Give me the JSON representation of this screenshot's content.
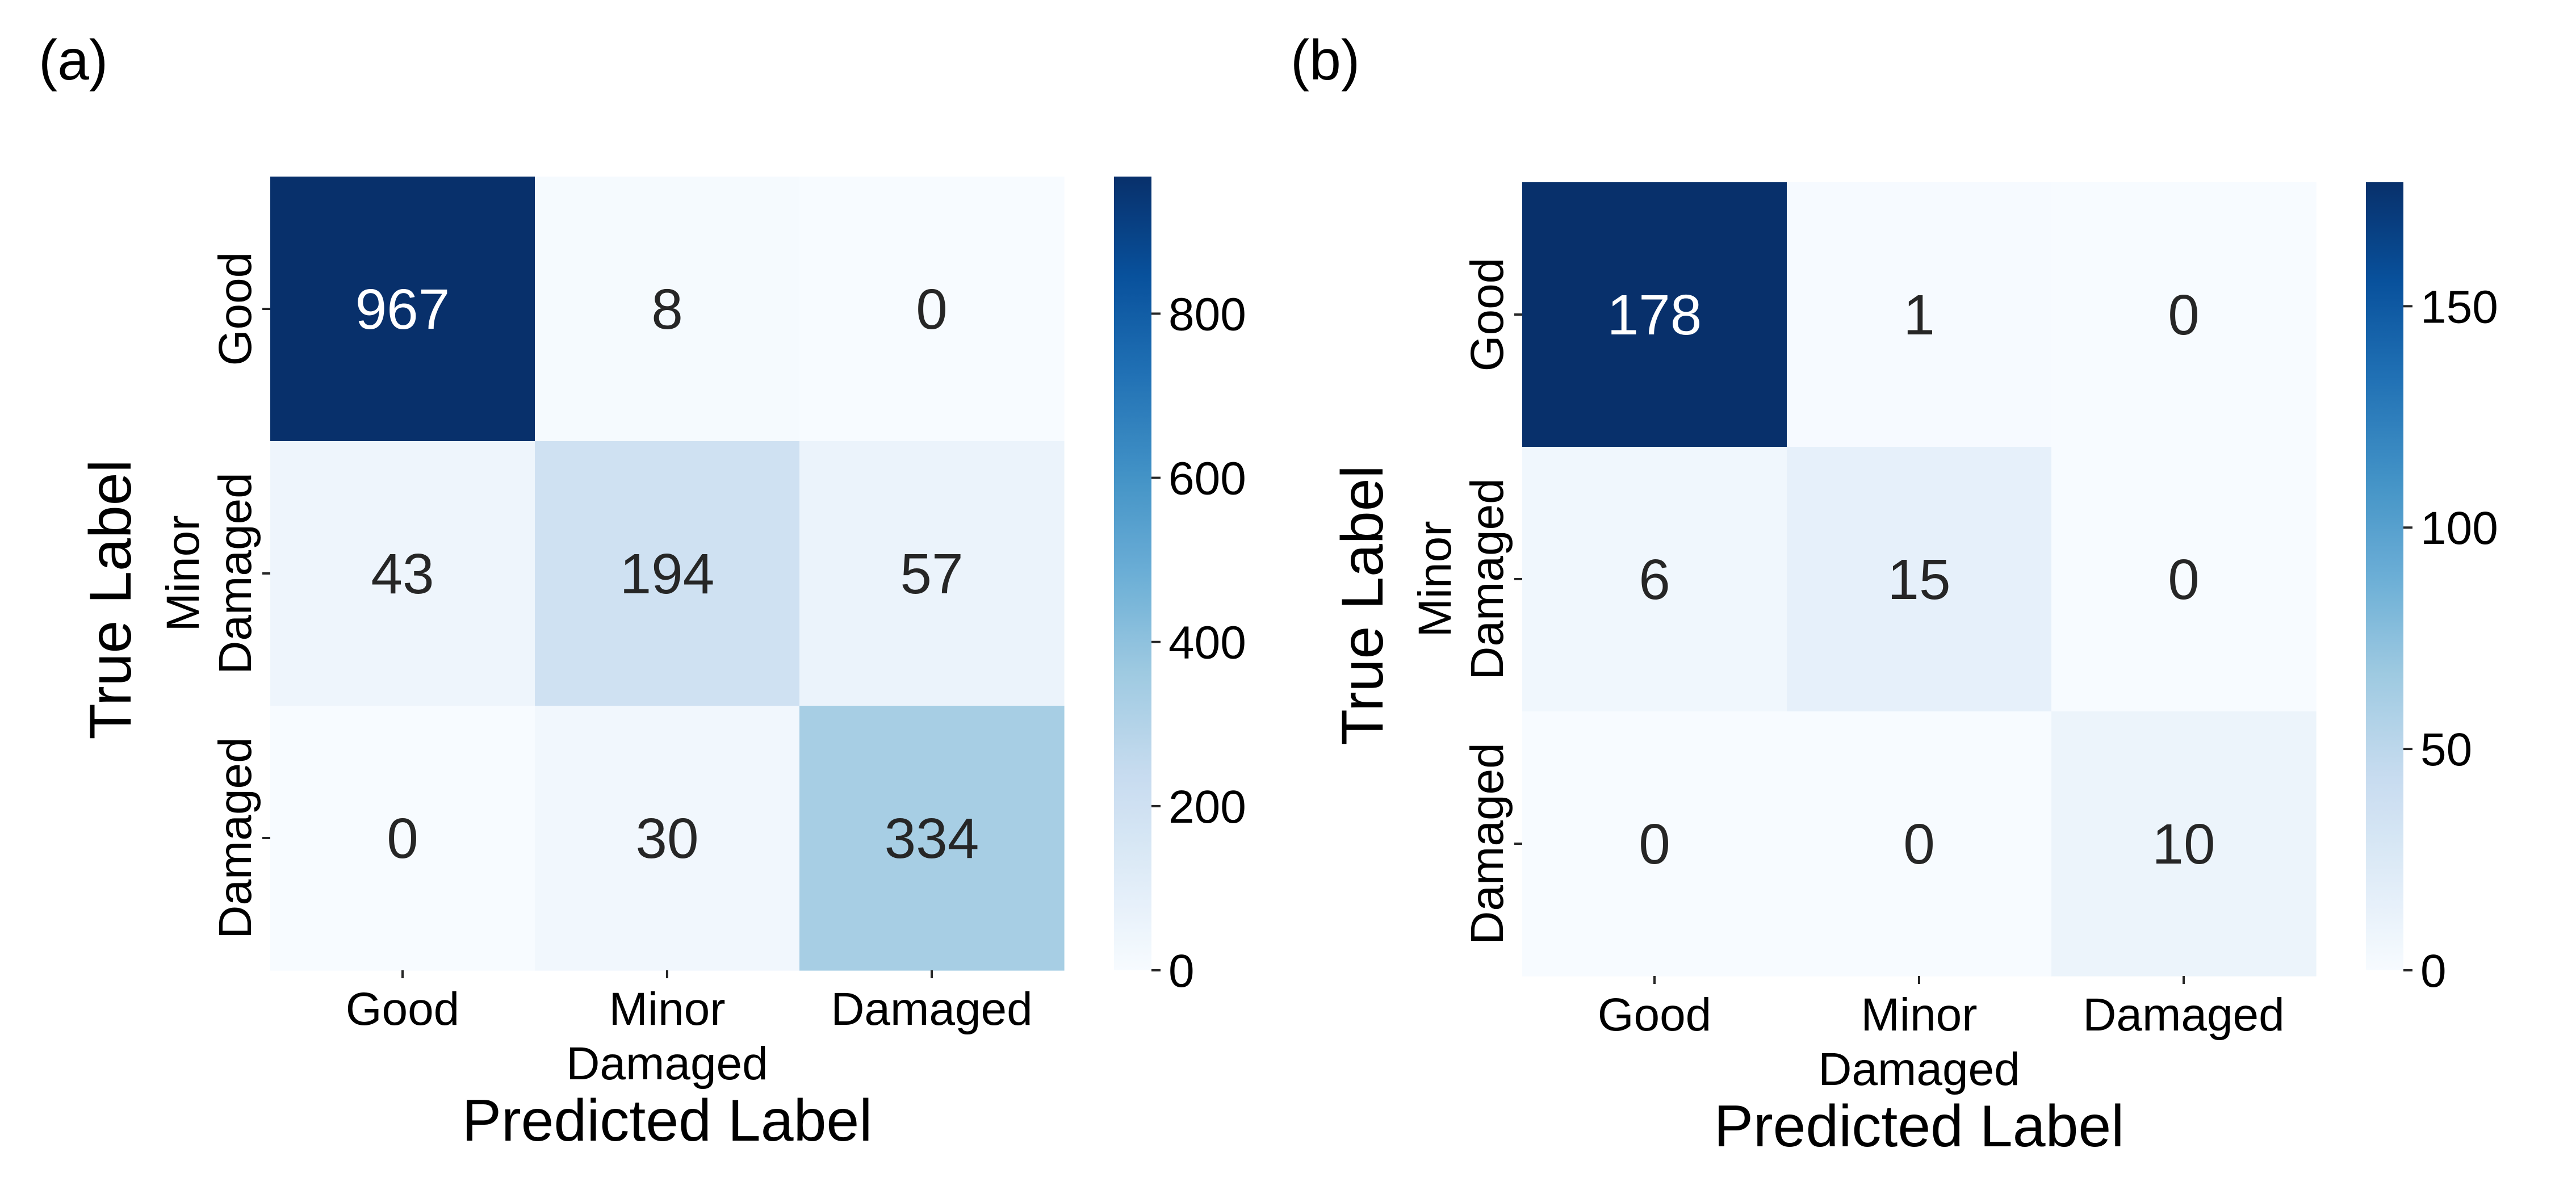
{
  "colormap": {
    "name": "Blues",
    "stops": [
      [
        0.0,
        "#f7fbff"
      ],
      [
        0.125,
        "#deebf7"
      ],
      [
        0.25,
        "#c6dbef"
      ],
      [
        0.375,
        "#9ecae1"
      ],
      [
        0.5,
        "#6baed6"
      ],
      [
        0.625,
        "#4292c6"
      ],
      [
        0.75,
        "#2171b5"
      ],
      [
        0.875,
        "#08519c"
      ],
      [
        1.0,
        "#08306b"
      ]
    ],
    "text_dark": "#262626",
    "text_light": "#ffffff"
  },
  "chart_data": [
    {
      "type": "heatmap",
      "panel_label": "(a)",
      "xlabel": "Predicted Label",
      "ylabel": "True Label",
      "x_categories": [
        "Good",
        "Minor\nDamaged",
        "Damaged"
      ],
      "y_categories": [
        "Good",
        "Minor\nDamaged",
        "Damaged"
      ],
      "values": [
        [
          967,
          8,
          0
        ],
        [
          43,
          194,
          57
        ],
        [
          0,
          30,
          334
        ]
      ],
      "colorbar": {
        "min": 0,
        "max": 967,
        "ticks": [
          0,
          200,
          400,
          600,
          800
        ]
      }
    },
    {
      "type": "heatmap",
      "panel_label": "(b)",
      "xlabel": "Predicted Label",
      "ylabel": "True Label",
      "x_categories": [
        "Good",
        "Minor\nDamaged",
        "Damaged"
      ],
      "y_categories": [
        "Good",
        "Minor\nDamaged",
        "Damaged"
      ],
      "values": [
        [
          178,
          1,
          0
        ],
        [
          6,
          15,
          0
        ],
        [
          0,
          0,
          10
        ]
      ],
      "colorbar": {
        "min": 0,
        "max": 178,
        "ticks": [
          0,
          50,
          100,
          150
        ]
      }
    }
  ]
}
